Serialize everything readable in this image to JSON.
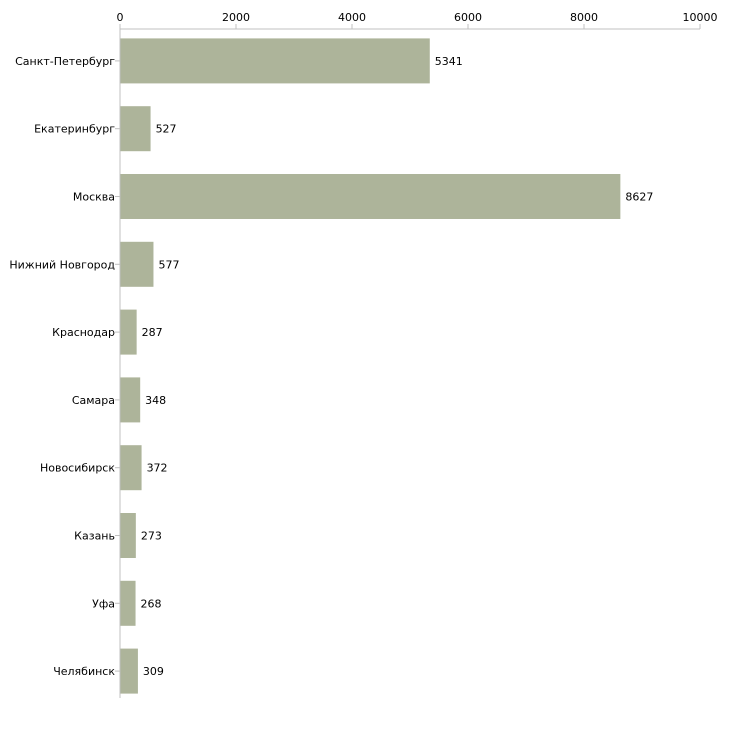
{
  "chart_data": {
    "type": "bar",
    "orientation": "horizontal",
    "title": "",
    "xlabel": "",
    "ylabel": "",
    "xlim": [
      0,
      10000
    ],
    "ticks": [
      0,
      2000,
      4000,
      6000,
      8000,
      10000
    ],
    "tick_labels": [
      "0",
      "2000",
      "4000",
      "6000",
      "8000",
      "10000"
    ],
    "grid": false,
    "categories": [
      "Санкт-Петербург",
      "Екатеринбург",
      "Москва",
      "Нижний Новгород",
      "Краснодар",
      "Самара",
      "Новосибирск",
      "Казань",
      "Уфа",
      "Челябинск"
    ],
    "values": [
      5341,
      527,
      8627,
      577,
      287,
      348,
      372,
      273,
      268,
      309
    ],
    "value_labels": [
      "5341",
      "527",
      "8627",
      "577",
      "287",
      "348",
      "372",
      "273",
      "268",
      "309"
    ],
    "bar_color": "#adb49a",
    "axis_color": "#c0c0c0"
  }
}
